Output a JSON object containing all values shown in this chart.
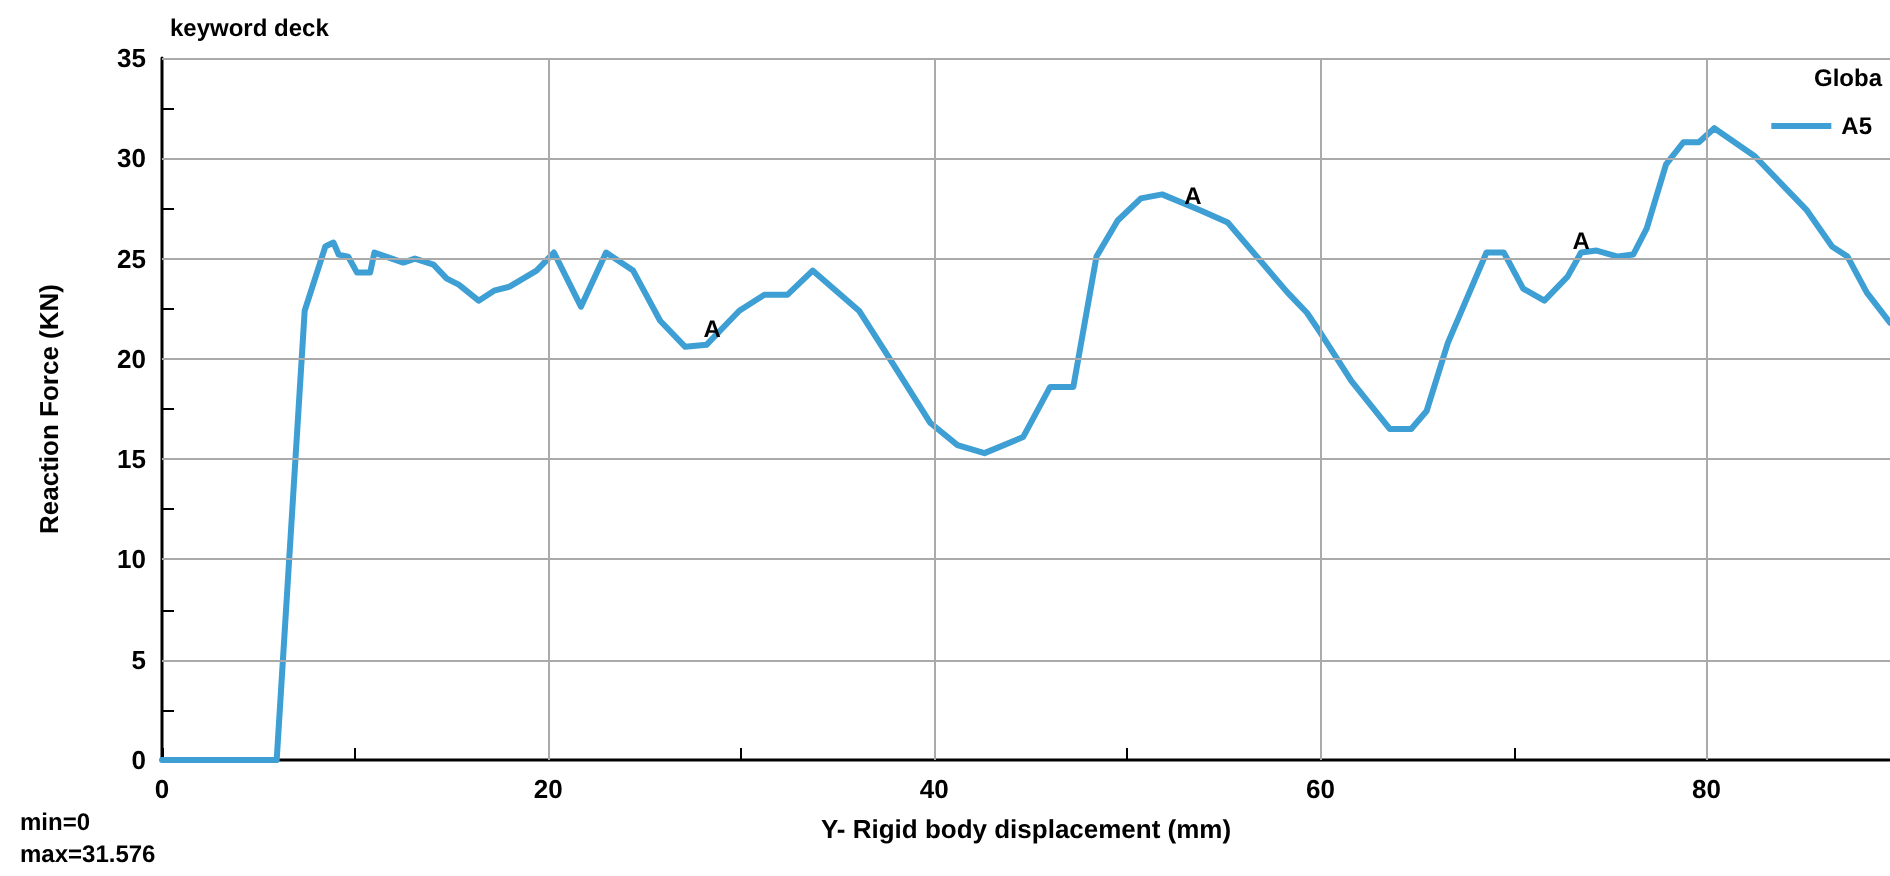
{
  "chart_data": {
    "type": "line",
    "title": "keyword deck",
    "xlabel": "Y- Rigid body displacement (mm)",
    "ylabel": "Reaction Force (KN)",
    "legend_title": "Globa",
    "x": [
      0,
      5.94,
      7.39,
      8.46,
      8.88,
      9.15,
      9.64,
      10.1,
      10.78,
      11.0,
      12.5,
      13.1,
      14.06,
      14.75,
      15.37,
      16.4,
      17.2,
      18.0,
      19.4,
      20.3,
      21.7,
      23.0,
      24.4,
      25.8,
      27.1,
      28.2,
      29.9,
      31.2,
      32.4,
      33.7,
      36.1,
      37.5,
      39.8,
      41.2,
      42.6,
      44.6,
      46.0,
      47.2,
      48.4,
      49.5,
      50.7,
      51.8,
      53.8,
      55.2,
      58.3,
      59.3,
      60.0,
      61.6,
      63.6,
      64.7,
      65.5,
      66.6,
      68.6,
      69.5,
      70.5,
      71.6,
      72.8,
      73.5,
      74.3,
      75.4,
      76.2,
      76.9,
      77.9,
      78.8,
      79.6,
      80.4,
      82.5,
      85.2,
      86.5,
      87.3,
      88.3,
      89.5
    ],
    "series": [
      {
        "name": "A5",
        "color": "#3d9fd3",
        "values": [
          0,
          0,
          22.4,
          25.6,
          25.8,
          25.2,
          25.1,
          24.3,
          24.3,
          25.3,
          24.8,
          25.0,
          24.7,
          24.0,
          23.7,
          22.9,
          23.4,
          23.6,
          24.4,
          25.3,
          22.6,
          25.3,
          24.4,
          21.9,
          20.6,
          20.7,
          22.4,
          23.2,
          23.2,
          24.4,
          22.4,
          20.3,
          16.8,
          15.7,
          15.3,
          16.1,
          18.6,
          18.6,
          25.1,
          26.9,
          28.0,
          28.2,
          27.4,
          26.8,
          23.3,
          22.3,
          21.3,
          18.9,
          16.5,
          16.5,
          17.4,
          20.8,
          25.3,
          25.3,
          23.5,
          22.9,
          24.1,
          25.3,
          25.4,
          25.1,
          25.2,
          26.5,
          29.7,
          30.8,
          30.8,
          31.5,
          30.1,
          27.4,
          25.6,
          25.1,
          23.3,
          21.8
        ]
      }
    ],
    "xlim": [
      0,
      89.5
    ],
    "xticks": [
      0,
      {
        "value": 10,
        "label": null
      },
      20,
      {
        "value": 30,
        "label": null
      },
      40,
      {
        "value": 50,
        "label": null
      },
      60,
      {
        "value": 70,
        "label": null
      },
      80
    ],
    "ylim": [
      0,
      35
    ],
    "yticks": [
      0,
      {
        "value": 2.5,
        "label": null
      },
      5,
      {
        "value": 7.5,
        "label": null
      },
      10,
      {
        "value": 12.5,
        "label": null
      },
      15,
      {
        "value": 17.5,
        "label": null
      },
      20,
      {
        "value": 22.5,
        "label": null
      },
      25,
      {
        "value": 27.5,
        "label": null
      },
      30,
      {
        "value": 32.5,
        "label": null
      },
      35
    ],
    "grid": true,
    "legend": "top right",
    "marker": "none",
    "line_style": "solid",
    "annotations": [
      {
        "text": "A",
        "x": 28.5,
        "y": 20.9
      },
      {
        "text": "A",
        "x": 53.4,
        "y": 27.5
      },
      {
        "text": "A",
        "x": 73.5,
        "y": 25.3
      },
      "min=0",
      "max=31.576"
    ]
  }
}
